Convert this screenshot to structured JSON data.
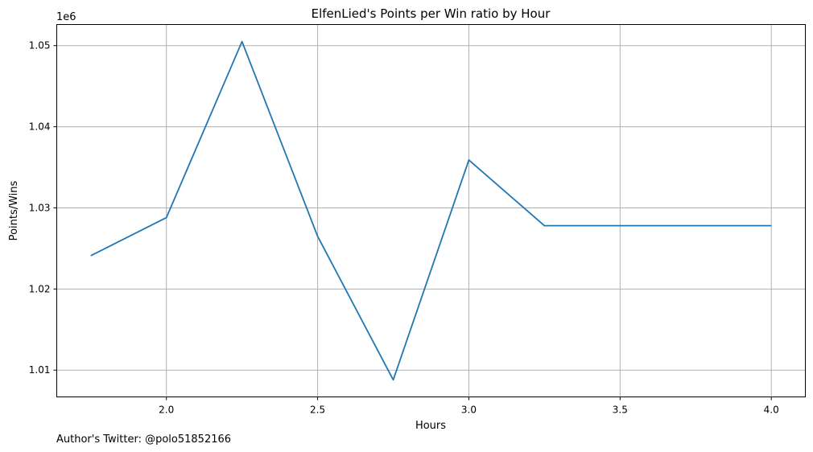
{
  "chart_data": {
    "type": "line",
    "title": "ElfenLied's Points per Win ratio by Hour",
    "xlabel": "Hours",
    "ylabel": "Points/Wins",
    "y_offset_label": "1e6",
    "x": [
      1.75,
      2.0,
      2.25,
      2.5,
      2.75,
      3.0,
      3.25,
      3.5,
      3.75,
      4.0
    ],
    "series": [
      {
        "values": [
          1024100,
          1028800,
          1050500,
          1026500,
          1008800,
          1035900,
          1027800,
          1027800,
          1027800,
          1027800
        ]
      }
    ],
    "xlim": [
      1.6375,
      4.1125
    ],
    "ylim": [
      1006700,
      1052600
    ],
    "x_ticks": [
      2.0,
      2.5,
      3.0,
      3.5,
      4.0
    ],
    "x_tick_labels": [
      "2.0",
      "2.5",
      "3.0",
      "3.5",
      "4.0"
    ],
    "y_ticks": [
      1010000,
      1020000,
      1030000,
      1040000,
      1050000
    ],
    "y_tick_labels": [
      "1.01",
      "1.02",
      "1.03",
      "1.04",
      "1.05"
    ],
    "grid": true,
    "line_color": "#1f77b4",
    "grid_color": "#b0b0b0"
  },
  "footer": {
    "author_text": "Author's Twitter: @polo51852166"
  }
}
